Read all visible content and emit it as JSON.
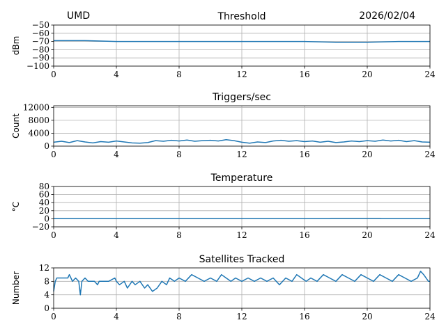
{
  "header": {
    "left_label": "UMD",
    "date": "2026/02/04"
  },
  "chart_data": [
    {
      "type": "line",
      "title": "Threshold",
      "ylabel": "dBm",
      "xlim": [
        0,
        24
      ],
      "ylim": [
        -100,
        -50
      ],
      "x_ticks": [
        0,
        4,
        8,
        12,
        16,
        20,
        24
      ],
      "y_ticks": [
        -100,
        -90,
        -80,
        -70,
        -60,
        -50
      ],
      "grid": true,
      "series": [
        {
          "color": "#1f77b4",
          "x": [
            0,
            2,
            4,
            6,
            8,
            10,
            12,
            14,
            16,
            18,
            20,
            22,
            24
          ],
          "y": [
            -69,
            -69,
            -70,
            -70,
            -70,
            -70,
            -70,
            -70,
            -70,
            -71,
            -71,
            -70,
            -70
          ]
        }
      ]
    },
    {
      "type": "line",
      "title": "Triggers/sec",
      "ylabel": "Count",
      "xlim": [
        0,
        24
      ],
      "ylim": [
        0,
        12500
      ],
      "x_ticks": [
        0,
        4,
        8,
        12,
        16,
        20,
        24
      ],
      "y_ticks": [
        0,
        4000,
        8000,
        12000
      ],
      "grid": true,
      "series": [
        {
          "color": "#1f77b4",
          "x": [
            0,
            0.5,
            1,
            1.5,
            2,
            2.5,
            3,
            3.5,
            4,
            4.5,
            5,
            5.5,
            6,
            6.5,
            7,
            7.5,
            8,
            8.5,
            9,
            9.5,
            10,
            10.5,
            11,
            11.5,
            12,
            12.5,
            13,
            13.5,
            14,
            14.5,
            15,
            15.5,
            16,
            16.5,
            17,
            17.5,
            18,
            18.5,
            19,
            19.5,
            20,
            20.5,
            21,
            21.5,
            22,
            22.5,
            23,
            23.5,
            24
          ],
          "y": [
            1200,
            1500,
            1100,
            1700,
            1300,
            1000,
            1400,
            1200,
            1600,
            1300,
            1000,
            900,
            1100,
            1700,
            1500,
            1800,
            1600,
            1900,
            1500,
            1700,
            1800,
            1600,
            2000,
            1700,
            1200,
            900,
            1300,
            1100,
            1600,
            1800,
            1500,
            1700,
            1400,
            1600,
            1200,
            1500,
            1100,
            1300,
            1600,
            1400,
            1700,
            1500,
            1900,
            1600,
            1800,
            1400,
            1700,
            1300,
            1200
          ]
        }
      ]
    },
    {
      "type": "line",
      "title": "Temperature",
      "ylabel": "°C",
      "xlim": [
        0,
        24
      ],
      "ylim": [
        -20,
        80
      ],
      "x_ticks": [
        0,
        4,
        8,
        12,
        16,
        20,
        24
      ],
      "y_ticks": [
        -20,
        0,
        20,
        40,
        60,
        80
      ],
      "grid": true,
      "series": [
        {
          "color": "#1f77b4",
          "x": [
            0,
            4,
            8,
            12,
            16,
            17.6,
            17.7,
            20.8,
            20.9,
            24
          ],
          "y": [
            0.5,
            0.5,
            0.5,
            0.5,
            0.5,
            0.5,
            1,
            1,
            0.5,
            0.5
          ]
        }
      ]
    },
    {
      "type": "line",
      "title": "Satellites Tracked",
      "ylabel": "Number",
      "xlim": [
        0,
        24
      ],
      "ylim": [
        0,
        12
      ],
      "x_ticks": [
        0,
        4,
        8,
        12,
        16,
        20,
        24
      ],
      "y_ticks": [
        0,
        4,
        8,
        12
      ],
      "grid": true,
      "series": [
        {
          "color": "#1f77b4",
          "x": [
            0,
            0.1,
            0.2,
            0.9,
            1.0,
            1.1,
            1.2,
            1.4,
            1.6,
            1.7,
            1.8,
            2.0,
            2.2,
            2.6,
            2.8,
            2.9,
            3.5,
            3.9,
            4.0,
            4.2,
            4.5,
            4.7,
            5.0,
            5.2,
            5.5,
            5.8,
            6.0,
            6.3,
            6.6,
            6.9,
            7.2,
            7.4,
            7.7,
            8.0,
            8.4,
            8.8,
            9.2,
            9.6,
            10.0,
            10.4,
            10.7,
            11.0,
            11.3,
            11.6,
            12.0,
            12.4,
            12.8,
            13.2,
            13.6,
            14.0,
            14.4,
            14.8,
            15.2,
            15.5,
            15.8,
            16.1,
            16.4,
            16.8,
            17.2,
            17.6,
            18.0,
            18.4,
            18.8,
            19.2,
            19.6,
            20.0,
            20.4,
            20.8,
            21.2,
            21.6,
            22.0,
            22.4,
            22.8,
            23.2,
            23.4,
            23.6,
            23.9,
            24
          ],
          "y": [
            5,
            8,
            9,
            9,
            10,
            9,
            8,
            9,
            8,
            4,
            8,
            9,
            8,
            8,
            7,
            8,
            8,
            9,
            8,
            7,
            8,
            6,
            8,
            7,
            8,
            6,
            7,
            5,
            6,
            8,
            7,
            9,
            8,
            9,
            8,
            10,
            9,
            8,
            9,
            8,
            10,
            9,
            8,
            9,
            8,
            9,
            8,
            9,
            8,
            9,
            7,
            9,
            8,
            10,
            9,
            8,
            9,
            8,
            10,
            9,
            8,
            10,
            9,
            8,
            10,
            9,
            8,
            10,
            9,
            8,
            10,
            9,
            8,
            9,
            11,
            10,
            8,
            8
          ]
        }
      ]
    }
  ]
}
